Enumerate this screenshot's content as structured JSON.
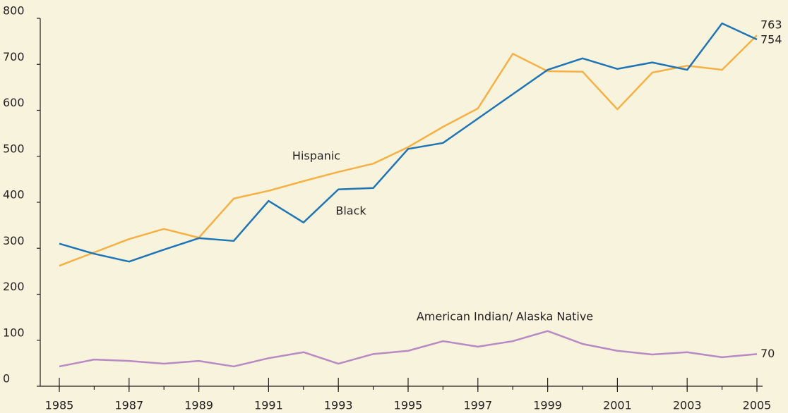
{
  "chart_data": {
    "type": "line",
    "x": [
      1985,
      1986,
      1987,
      1988,
      1989,
      1990,
      1991,
      1992,
      1993,
      1994,
      1995,
      1996,
      1997,
      1998,
      1999,
      2000,
      2001,
      2002,
      2003,
      2004,
      2005
    ],
    "series": [
      {
        "name": "Hispanic",
        "color": "#f7b043",
        "values": [
          262,
          291,
          320,
          342,
          323,
          408,
          425,
          446,
          466,
          484,
          520,
          564,
          604,
          723,
          685,
          684,
          602,
          682,
          697,
          688,
          763
        ]
      },
      {
        "name": "Black",
        "color": "#1f74b5",
        "values": [
          310,
          288,
          271,
          297,
          322,
          316,
          403,
          356,
          428,
          431,
          516,
          529,
          582,
          635,
          688,
          713,
          690,
          704,
          688,
          789,
          754
        ]
      },
      {
        "name": "American Indian/ Alaska Native",
        "color": "#b889c5",
        "values": [
          43,
          58,
          55,
          49,
          55,
          43,
          61,
          74,
          49,
          70,
          77,
          98,
          86,
          98,
          120,
          92,
          77,
          69,
          74,
          63,
          70
        ]
      }
    ],
    "xlim": [
      1985,
      2005
    ],
    "xticks": [
      1985,
      1987,
      1989,
      1991,
      1993,
      1995,
      1997,
      1999,
      2001,
      2003,
      2005
    ],
    "ylim": [
      0,
      800
    ],
    "yticks": [
      0,
      100,
      200,
      300,
      400,
      500,
      600,
      700,
      800
    ]
  }
}
